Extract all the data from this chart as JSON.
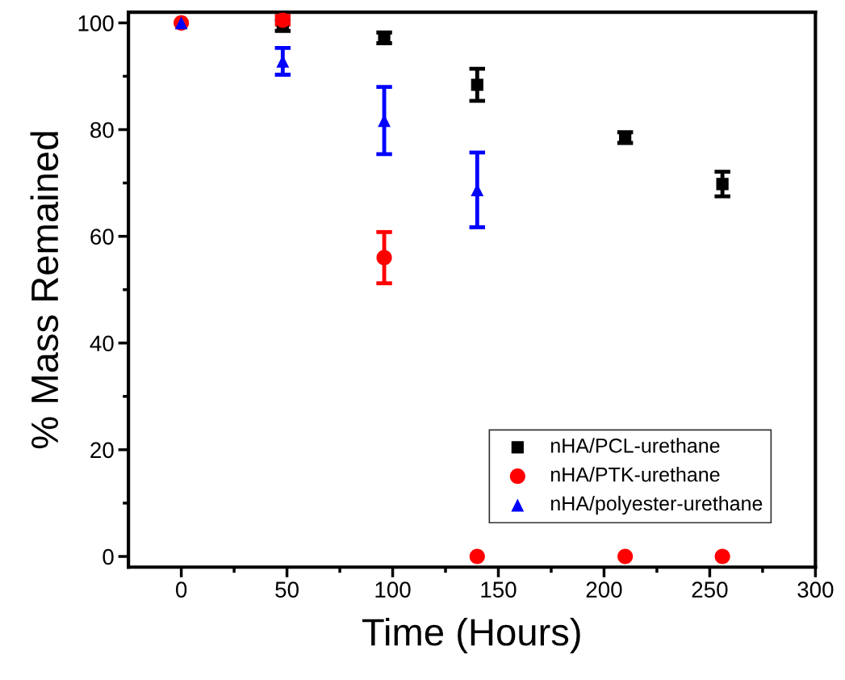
{
  "chart_data": {
    "type": "scatter",
    "xlabel": "Time (Hours)",
    "ylabel": "% Mass Remained",
    "xlim": [
      -25,
      300
    ],
    "ylim": [
      -2,
      102
    ],
    "xticks": [
      0,
      {
        "value": 25,
        "label": null
      },
      50,
      {
        "value": 75,
        "label": null
      },
      100,
      {
        "value": 125,
        "label": null
      },
      150,
      {
        "value": 175,
        "label": null
      },
      200,
      {
        "value": 225,
        "label": null
      },
      250,
      {
        "value": 275,
        "label": null
      },
      300
    ],
    "yticks": [
      0,
      {
        "value": 10,
        "label": null
      },
      20,
      {
        "value": 30,
        "label": null
      },
      40,
      {
        "value": 50,
        "label": null
      },
      60,
      {
        "value": 70,
        "label": null
      },
      80,
      {
        "value": 90,
        "label": null
      },
      100
    ],
    "grid": false,
    "legend": "bottom right",
    "series": [
      {
        "name": "nHA/PCL-urethane",
        "color": "#000000",
        "marker": "square",
        "x": [
          48,
          96,
          140,
          210,
          256
        ],
        "values": [
          99.5,
          97.2,
          88.4,
          78.5,
          69.8
        ],
        "errors": [
          1,
          1,
          3,
          1,
          2.3
        ]
      },
      {
        "name": "nHA/PTK-urethane",
        "color": "#ff0000",
        "marker": "circle",
        "x": [
          0,
          48,
          96,
          140,
          210,
          256
        ],
        "values": [
          100,
          100.5,
          56,
          0,
          0,
          0
        ],
        "errors": [
          null,
          0.8,
          4.8,
          null,
          null,
          null
        ]
      },
      {
        "name": "nHA/polyester-urethane",
        "color": "#0000ff",
        "marker": "triangle",
        "x": [
          0,
          48,
          96,
          140
        ],
        "values": [
          100,
          92.8,
          81.7,
          68.7
        ],
        "errors": [
          null,
          2.5,
          6.3,
          7
        ]
      }
    ]
  }
}
